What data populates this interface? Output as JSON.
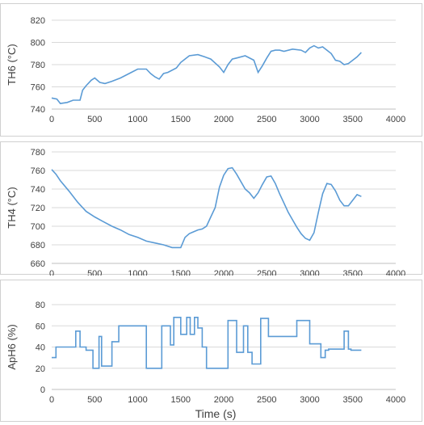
{
  "chart_data": [
    {
      "type": "line",
      "ylabel": "TH6 (°C)",
      "xlabel": "",
      "xlim": [
        0,
        4000
      ],
      "ylim": [
        740,
        820
      ],
      "xticks": [
        "0",
        "500",
        "1000",
        "1500",
        "2000",
        "2500",
        "3000",
        "3500",
        "4000"
      ],
      "yticks": [
        "740",
        "760",
        "780",
        "800",
        "820"
      ],
      "grid": true,
      "color": "#5b9bd5",
      "series": [
        {
          "x": [
            0,
            60,
            100,
            180,
            250,
            330,
            360,
            400,
            460,
            500,
            560,
            620,
            700,
            800,
            900,
            1000,
            1100,
            1150,
            1200,
            1250,
            1300,
            1350,
            1400,
            1450,
            1500,
            1550,
            1600,
            1700,
            1780,
            1850,
            1950,
            2000,
            2050,
            2100,
            2150,
            2250,
            2350,
            2400,
            2450,
            2500,
            2550,
            2600,
            2650,
            2700,
            2800,
            2900,
            2950,
            3000,
            3050,
            3100,
            3150,
            3200,
            3250,
            3300,
            3350,
            3400,
            3450,
            3500,
            3550,
            3600
          ],
          "y": [
            750,
            749,
            745,
            746,
            748,
            748,
            757,
            761,
            766,
            768,
            764,
            763,
            765,
            768,
            772,
            776,
            776,
            772,
            769,
            767,
            772,
            773,
            775,
            777,
            782,
            785,
            788,
            789,
            787,
            785,
            778,
            773,
            780,
            785,
            786,
            788,
            784,
            773,
            779,
            786,
            792,
            793,
            793,
            792,
            794,
            793,
            791,
            795,
            797,
            795,
            796,
            793,
            790,
            784,
            783,
            780,
            781,
            784,
            787,
            791
          ]
        }
      ]
    },
    {
      "type": "line",
      "ylabel": "TH4 (°C)",
      "xlabel": "",
      "xlim": [
        0,
        4000
      ],
      "ylim": [
        660,
        780
      ],
      "xticks": [
        "0",
        "500",
        "1000",
        "1500",
        "2000",
        "2500",
        "3000",
        "3500",
        "4000"
      ],
      "yticks": [
        "660",
        "680",
        "700",
        "720",
        "740",
        "760",
        "780"
      ],
      "grid": true,
      "color": "#5b9bd5",
      "series": [
        {
          "x": [
            0,
            50,
            100,
            200,
            300,
            400,
            500,
            600,
            700,
            800,
            900,
            1000,
            1100,
            1200,
            1300,
            1400,
            1450,
            1500,
            1550,
            1600,
            1650,
            1700,
            1750,
            1800,
            1850,
            1900,
            1950,
            2000,
            2050,
            2100,
            2150,
            2200,
            2250,
            2300,
            2350,
            2400,
            2450,
            2500,
            2550,
            2600,
            2650,
            2700,
            2750,
            2800,
            2850,
            2900,
            2950,
            3000,
            3050,
            3100,
            3150,
            3200,
            3250,
            3300,
            3350,
            3400,
            3450,
            3500,
            3550,
            3600
          ],
          "y": [
            761,
            756,
            749,
            738,
            726,
            716,
            710,
            705,
            700,
            696,
            691,
            688,
            684,
            682,
            680,
            677,
            677,
            677,
            688,
            692,
            694,
            696,
            697,
            700,
            710,
            720,
            742,
            755,
            762,
            763,
            756,
            748,
            740,
            736,
            730,
            736,
            745,
            753,
            754,
            746,
            735,
            725,
            715,
            707,
            699,
            692,
            687,
            685,
            693,
            715,
            735,
            746,
            745,
            738,
            728,
            722,
            722,
            728,
            734,
            732
          ]
        }
      ]
    },
    {
      "type": "line",
      "ylabel": "ApH6 (%)",
      "xlabel": "Time (s)",
      "xlim": [
        0,
        4000
      ],
      "ylim": [
        0,
        80
      ],
      "xticks": [
        "0",
        "500",
        "1000",
        "1500",
        "2000",
        "2500",
        "3000",
        "3500",
        "4000"
      ],
      "yticks": [
        "0",
        "20",
        "40",
        "60",
        "80"
      ],
      "grid": true,
      "color": "#5b9bd5",
      "series": [
        {
          "x": [
            0,
            50,
            50,
            280,
            280,
            330,
            330,
            400,
            400,
            480,
            480,
            550,
            550,
            580,
            580,
            600,
            600,
            700,
            700,
            780,
            780,
            1100,
            1100,
            1280,
            1280,
            1380,
            1380,
            1420,
            1420,
            1500,
            1500,
            1570,
            1570,
            1610,
            1610,
            1660,
            1660,
            1700,
            1700,
            1750,
            1750,
            1800,
            1800,
            1800,
            1800,
            1950,
            1950,
            2050,
            2050,
            2150,
            2150,
            2200,
            2200,
            2230,
            2230,
            2280,
            2280,
            2330,
            2330,
            2430,
            2430,
            2520,
            2520,
            2620,
            2620,
            2850,
            2850,
            3000,
            3000,
            3130,
            3130,
            3180,
            3180,
            3220,
            3220,
            3260,
            3260,
            3400,
            3400,
            3450,
            3450,
            3480,
            3480,
            3600
          ],
          "y": [
            30,
            30,
            40,
            40,
            55,
            55,
            40,
            40,
            37,
            37,
            20,
            20,
            50,
            50,
            22,
            22,
            22,
            22,
            45,
            45,
            60,
            60,
            20,
            20,
            60,
            60,
            42,
            42,
            68,
            68,
            52,
            52,
            68,
            68,
            52,
            52,
            68,
            68,
            58,
            58,
            40,
            40,
            38,
            38,
            20,
            20,
            20,
            20,
            65,
            65,
            35,
            35,
            35,
            35,
            60,
            60,
            35,
            35,
            24,
            24,
            67,
            67,
            50,
            50,
            50,
            50,
            65,
            65,
            43,
            43,
            30,
            30,
            37,
            37,
            38,
            38,
            38,
            38,
            55,
            55,
            38,
            38,
            37,
            37
          ]
        }
      ]
    }
  ]
}
